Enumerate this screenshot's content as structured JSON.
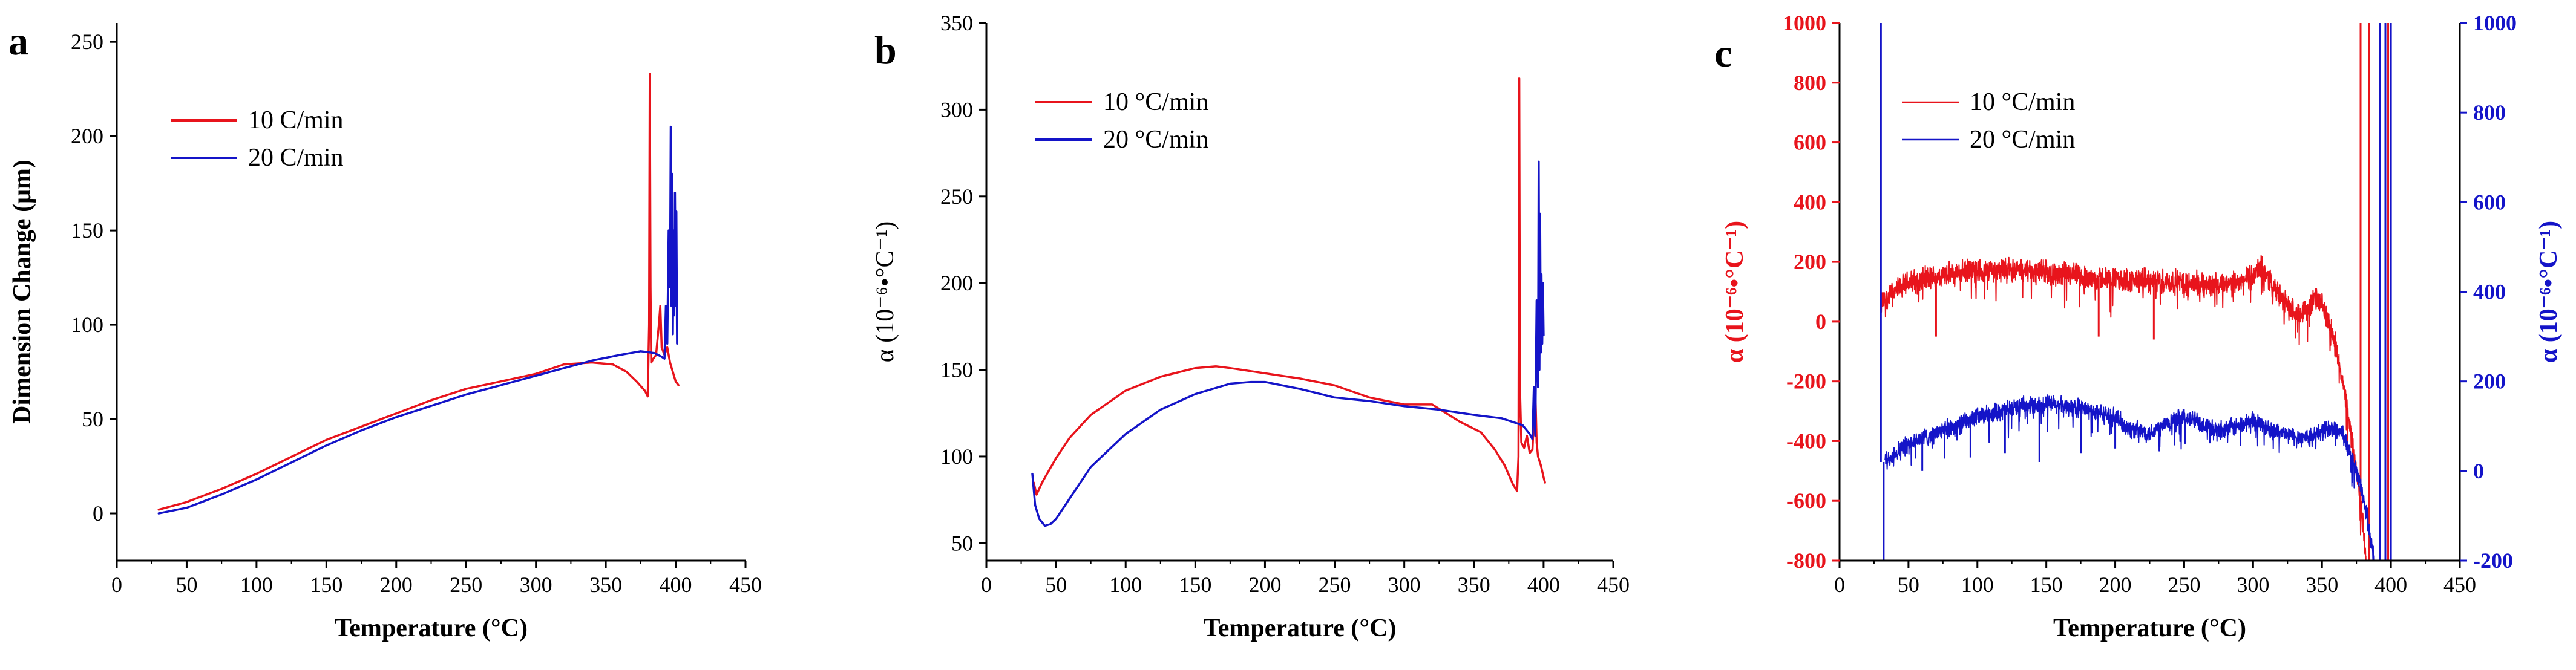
{
  "colors": {
    "red": "#e8141c",
    "blue": "#1414c8",
    "axis": "#000000"
  },
  "chart_data": [
    {
      "type": "line",
      "panel": "a",
      "title": "",
      "xlabel": "Temperature (°C)",
      "ylabel": "Dimension Change (μm)",
      "xlim": [
        0,
        450
      ],
      "ylim": [
        -25,
        260
      ],
      "x_ticks": [
        0,
        50,
        100,
        150,
        200,
        250,
        300,
        350,
        400,
        450
      ],
      "y_ticks": [
        0,
        50,
        100,
        150,
        200,
        250
      ],
      "legend": [
        "10 C/min",
        "20 C/min"
      ],
      "series": [
        {
          "name": "10 C/min",
          "color": "#e8141c",
          "points": [
            [
              30,
              2
            ],
            [
              50,
              6
            ],
            [
              75,
              13
            ],
            [
              100,
              21
            ],
            [
              125,
              30
            ],
            [
              150,
              39
            ],
            [
              175,
              46
            ],
            [
              200,
              53
            ],
            [
              225,
              60
            ],
            [
              250,
              66
            ],
            [
              275,
              70
            ],
            [
              300,
              74
            ],
            [
              320,
              79
            ],
            [
              340,
              80
            ],
            [
              355,
              79
            ],
            [
              365,
              75
            ],
            [
              372,
              70
            ],
            [
              378,
              65
            ],
            [
              380,
              62
            ],
            [
              381,
              100
            ],
            [
              381.5,
              233
            ],
            [
              382,
              120
            ],
            [
              382.5,
              80
            ],
            [
              384,
              82
            ],
            [
              386,
              84
            ],
            [
              388,
              100
            ],
            [
              389,
              110
            ],
            [
              390,
              88
            ],
            [
              392,
              84
            ],
            [
              394,
              88
            ],
            [
              396,
              80
            ],
            [
              398,
              75
            ],
            [
              400,
              70
            ],
            [
              402,
              68
            ]
          ]
        },
        {
          "name": "20 C/min",
          "color": "#1414c8",
          "points": [
            [
              30,
              0
            ],
            [
              50,
              3
            ],
            [
              75,
              10
            ],
            [
              100,
              18
            ],
            [
              125,
              27
            ],
            [
              150,
              36
            ],
            [
              175,
              44
            ],
            [
              200,
              51
            ],
            [
              225,
              57
            ],
            [
              250,
              63
            ],
            [
              275,
              68
            ],
            [
              300,
              73
            ],
            [
              320,
              77
            ],
            [
              340,
              81
            ],
            [
              360,
              84
            ],
            [
              375,
              86
            ],
            [
              385,
              85
            ],
            [
              390,
              83
            ],
            [
              392,
              82
            ],
            [
              393,
              110
            ],
            [
              394,
              90
            ],
            [
              395,
              150
            ],
            [
              396,
              120
            ],
            [
              396.5,
              205
            ],
            [
              397,
              110
            ],
            [
              397.5,
              180
            ],
            [
              398,
              95
            ],
            [
              398.5,
              150
            ],
            [
              399,
              105
            ],
            [
              399.5,
              170
            ],
            [
              400,
              110
            ],
            [
              400.5,
              160
            ],
            [
              401,
              90
            ]
          ]
        }
      ]
    },
    {
      "type": "line",
      "panel": "b",
      "title": "",
      "xlabel": "Temperature (°C)",
      "ylabel": "α (10⁻⁶•°C⁻¹)",
      "xlim": [
        0,
        450
      ],
      "ylim": [
        40,
        350
      ],
      "x_ticks": [
        0,
        50,
        100,
        150,
        200,
        250,
        300,
        350,
        400,
        450
      ],
      "y_ticks": [
        50,
        100,
        150,
        200,
        250,
        300,
        350
      ],
      "legend": [
        "10 °C/min",
        "20 °C/min"
      ],
      "series": [
        {
          "name": "10 °C/min",
          "color": "#e8141c",
          "points": [
            [
              34,
              85
            ],
            [
              36,
              78
            ],
            [
              40,
              85
            ],
            [
              50,
              99
            ],
            [
              60,
              111
            ],
            [
              75,
              124
            ],
            [
              100,
              138
            ],
            [
              125,
              146
            ],
            [
              150,
              151
            ],
            [
              165,
              152
            ],
            [
              175,
              151
            ],
            [
              200,
              148
            ],
            [
              225,
              145
            ],
            [
              250,
              141
            ],
            [
              275,
              134
            ],
            [
              300,
              130
            ],
            [
              320,
              130
            ],
            [
              340,
              120
            ],
            [
              355,
              114
            ],
            [
              365,
              104
            ],
            [
              372,
              95
            ],
            [
              378,
              84
            ],
            [
              381,
              80
            ],
            [
              382,
              100
            ],
            [
              382.5,
              318
            ],
            [
              383,
              140
            ],
            [
              384,
              108
            ],
            [
              386,
              105
            ],
            [
              388,
              112
            ],
            [
              390,
              102
            ],
            [
              392,
              104
            ],
            [
              394,
              140
            ],
            [
              395,
              108
            ],
            [
              396,
              100
            ],
            [
              398,
              95
            ],
            [
              400,
              88
            ],
            [
              401,
              85
            ]
          ]
        },
        {
          "name": "20 °C/min",
          "color": "#1414c8",
          "points": [
            [
              33,
              90
            ],
            [
              35,
              72
            ],
            [
              38,
              64
            ],
            [
              42,
              60
            ],
            [
              46,
              61
            ],
            [
              50,
              64
            ],
            [
              60,
              76
            ],
            [
              75,
              94
            ],
            [
              100,
              113
            ],
            [
              125,
              127
            ],
            [
              150,
              136
            ],
            [
              175,
              142
            ],
            [
              190,
              143
            ],
            [
              200,
              143
            ],
            [
              225,
              139
            ],
            [
              250,
              134
            ],
            [
              275,
              132
            ],
            [
              300,
              129
            ],
            [
              325,
              127
            ],
            [
              350,
              124
            ],
            [
              370,
              122
            ],
            [
              385,
              118
            ],
            [
              390,
              113
            ],
            [
              392,
              110
            ],
            [
              393,
              140
            ],
            [
              394,
              112
            ],
            [
              395,
              190
            ],
            [
              396,
              140
            ],
            [
              396.5,
              270
            ],
            [
              397,
              150
            ],
            [
              397.5,
              240
            ],
            [
              398,
              160
            ],
            [
              398.5,
              205
            ],
            [
              399,
              165
            ],
            [
              399.5,
              200
            ],
            [
              400,
              170
            ]
          ]
        }
      ]
    },
    {
      "type": "line",
      "panel": "c",
      "title": "",
      "xlabel": "Temperature (°C)",
      "ylabel": "α (10⁻⁶•°C⁻¹)",
      "ylabel_right": "α (10⁻⁶•°C⁻¹)",
      "xlim": [
        0,
        450
      ],
      "ylim": [
        -800,
        1000
      ],
      "ylim_right": [
        -200,
        1000
      ],
      "x_ticks": [
        0,
        50,
        100,
        150,
        200,
        250,
        300,
        350,
        400,
        450
      ],
      "y_ticks": [
        -800,
        -600,
        -400,
        -200,
        0,
        200,
        400,
        600,
        800,
        1000
      ],
      "y_ticks_right": [
        -200,
        0,
        200,
        400,
        600,
        800,
        1000
      ],
      "legend": [
        "10 °C/min",
        "20 °C/min"
      ],
      "series": [
        {
          "name": "10 °C/min",
          "axis": "left",
          "color": "#e8141c",
          "noisy": true,
          "noise_amplitude": 35,
          "points": [
            [
              30,
              60
            ],
            [
              40,
              100
            ],
            [
              50,
              130
            ],
            [
              75,
              155
            ],
            [
              100,
              170
            ],
            [
              125,
              175
            ],
            [
              150,
              165
            ],
            [
              175,
              150
            ],
            [
              200,
              140
            ],
            [
              225,
              135
            ],
            [
              250,
              130
            ],
            [
              275,
              120
            ],
            [
              290,
              130
            ],
            [
              300,
              155
            ],
            [
              305,
              180
            ],
            [
              310,
              160
            ],
            [
              320,
              80
            ],
            [
              330,
              30
            ],
            [
              340,
              40
            ],
            [
              345,
              80
            ],
            [
              350,
              50
            ],
            [
              355,
              0
            ],
            [
              360,
              -80
            ],
            [
              365,
              -200
            ],
            [
              370,
              -350
            ],
            [
              375,
              -500
            ],
            [
              378,
              -600
            ],
            [
              380,
              -700
            ],
            [
              382,
              -800
            ]
          ],
          "spikes": [
            [
              70,
              -50
            ],
            [
              188,
              -50
            ],
            [
              228,
              -60
            ],
            [
              378,
              1000
            ],
            [
              384,
              1000
            ],
            [
              390,
              -800
            ],
            [
              392,
              1000
            ],
            [
              395,
              -800
            ],
            [
              398,
              1000
            ],
            [
              400,
              -800
            ]
          ]
        },
        {
          "name": "20 °C/min",
          "axis": "right",
          "color": "#1414c8",
          "noisy": true,
          "noise_amplitude": 18,
          "points": [
            [
              33,
              20
            ],
            [
              40,
              40
            ],
            [
              50,
              60
            ],
            [
              75,
              90
            ],
            [
              100,
              120
            ],
            [
              125,
              140
            ],
            [
              150,
              150
            ],
            [
              175,
              140
            ],
            [
              200,
              120
            ],
            [
              210,
              95
            ],
            [
              225,
              85
            ],
            [
              240,
              110
            ],
            [
              250,
              120
            ],
            [
              260,
              110
            ],
            [
              275,
              90
            ],
            [
              290,
              100
            ],
            [
              300,
              115
            ],
            [
              305,
              105
            ],
            [
              315,
              90
            ],
            [
              325,
              80
            ],
            [
              335,
              75
            ],
            [
              345,
              80
            ],
            [
              350,
              90
            ],
            [
              360,
              95
            ],
            [
              365,
              85
            ],
            [
              370,
              40
            ],
            [
              375,
              0
            ],
            [
              380,
              -60
            ],
            [
              385,
              -140
            ],
            [
              388,
              -200
            ]
          ],
          "spikes": [
            [
              30,
              1000
            ],
            [
              32,
              -200
            ],
            [
              60,
              0
            ],
            [
              95,
              30
            ],
            [
              120,
              40
            ],
            [
              145,
              20
            ],
            [
              175,
              40
            ],
            [
              200,
              50
            ],
            [
              392,
              1000
            ],
            [
              394,
              -200
            ],
            [
              396,
              1000
            ],
            [
              398,
              -200
            ],
            [
              400,
              1000
            ]
          ]
        }
      ]
    }
  ]
}
